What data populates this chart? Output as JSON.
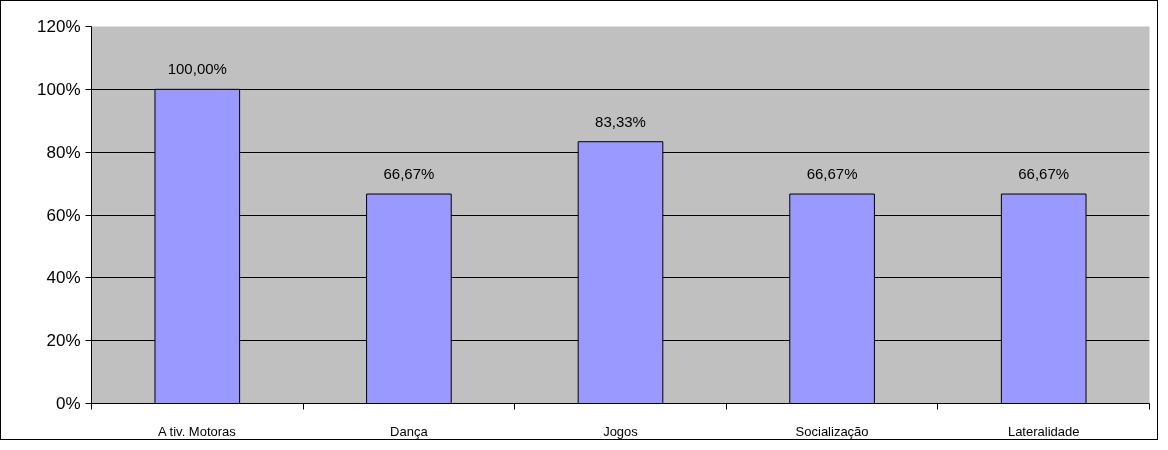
{
  "chart_data": {
    "type": "bar",
    "categories": [
      "A tiv. Motoras",
      "Dança",
      "Jogos",
      "Socialização",
      "Lateralidade"
    ],
    "values": [
      100,
      66.67,
      83.33,
      66.67,
      66.67
    ],
    "value_labels": [
      "100,00%",
      "66,67%",
      "83,33%",
      "66,67%",
      "66,67%"
    ],
    "color": "#9999ff",
    "ylim": [
      0,
      120
    ],
    "yticks": [
      {
        "value": 0,
        "label": "0%"
      },
      {
        "value": 20,
        "label": "20%"
      },
      {
        "value": 40,
        "label": "40%"
      },
      {
        "value": 60,
        "label": "60%"
      },
      {
        "value": 80,
        "label": "80%"
      },
      {
        "value": 100,
        "label": "100%"
      },
      {
        "value": 120,
        "label": "120%"
      }
    ],
    "grid": "y"
  }
}
